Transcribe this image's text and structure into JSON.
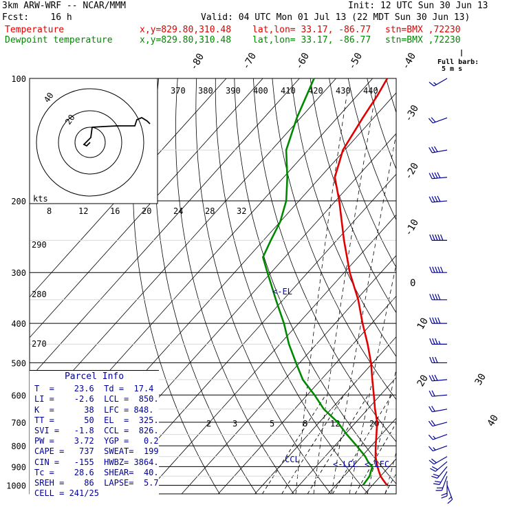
{
  "header": {
    "model": "3km ARW-WRF -- NCAR/MMM",
    "init": "Init: 12 UTC Sun 30 Jun 13",
    "fcst": "Fcst:    16 h",
    "valid": "Valid: 04 UTC Mon 01 Jul 13 (22 MDT Sun 30 Jun 13)",
    "lines": [
      {
        "name": "Temperature",
        "xy": "x,y=829.80,310.48",
        "latlon": "lat,lon= 33.17, -86.77",
        "stn": "stn=BMX ,72230",
        "color": "#e00000"
      },
      {
        "name": "Dewpoint temperature",
        "xy": "x,y=829.80,310.48",
        "latlon": "lat,lon= 33.17, -86.77",
        "stn": "stn=BMX ,72230",
        "color": "#008800"
      }
    ]
  },
  "barb_legend": {
    "title": "Full barb:",
    "value": "5 m s"
  },
  "parcel": {
    "title": "Parcel Info",
    "rows": [
      "T  =    23.6  Td =  17.4",
      "LI =    -2.6  LCL =  850.",
      "K  =      38  LFC = 848.",
      "TT =      50  EL  =  325.",
      "SVI =   -1.8  CCL =  826.",
      "PW =    3.72  YGP =   0.2",
      "CAPE =   737  SWEAT=  199",
      "CIN =   -155  HWBZ= 3864.",
      "Tc =    28.6  SHEAR=  40.",
      "SREH =    86  LAPSE=  5.7",
      "CELL = 241/25"
    ]
  },
  "chart_data": {
    "type": "line",
    "diagram": "skew-T log-p",
    "y_axis": {
      "pressure_levels": [
        100,
        200,
        300,
        400,
        500,
        600,
        700,
        800,
        900,
        1000
      ],
      "scale": "log"
    },
    "isotherm_labels": [
      "-80",
      "-70",
      "-60",
      "-50",
      "-40",
      "-30",
      "-20",
      "-10",
      "0",
      "10",
      "20",
      "30",
      "40"
    ],
    "theta_labels": [
      "370",
      "380",
      "390",
      "400",
      "410",
      "420",
      "430",
      "440"
    ],
    "theta_lower_labels": [
      "290",
      "280",
      "270"
    ],
    "mixing_ratio_labels": [
      "2",
      "3",
      "5",
      "8",
      "12",
      "20"
    ],
    "hodograph": {
      "unit": "kts",
      "ring_labels": [
        "20",
        "40"
      ],
      "speed_ticks": [
        "8",
        "12",
        "16",
        "20",
        "24",
        "28",
        "32"
      ]
    },
    "annotations": [
      "<-EL",
      "CCL",
      "<-LCL",
      "<-LFC"
    ],
    "series": [
      {
        "name": "Temperature",
        "color": "#e00000",
        "points": [
          [
            1000,
            24.0
          ],
          [
            975,
            22.0
          ],
          [
            950,
            20.0
          ],
          [
            925,
            18.4
          ],
          [
            900,
            16.8
          ],
          [
            850,
            13.8
          ],
          [
            800,
            11.2
          ],
          [
            750,
            8.6
          ],
          [
            700,
            5.8
          ],
          [
            650,
            2.0
          ],
          [
            600,
            -1.8
          ],
          [
            550,
            -6.0
          ],
          [
            500,
            -10.5
          ],
          [
            450,
            -16.0
          ],
          [
            400,
            -22.5
          ],
          [
            350,
            -29.5
          ],
          [
            300,
            -38.5
          ],
          [
            250,
            -48.0
          ],
          [
            200,
            -59.0
          ],
          [
            175,
            -66.0
          ],
          [
            150,
            -70.5
          ],
          [
            125,
            -73.0
          ],
          [
            110,
            -74.5
          ],
          [
            100,
            -76.0
          ]
        ]
      },
      {
        "name": "Dewpoint temperature",
        "color": "#008800",
        "points": [
          [
            1000,
            17.4
          ],
          [
            975,
            17.2
          ],
          [
            950,
            17.0
          ],
          [
            925,
            16.2
          ],
          [
            900,
            15.4
          ],
          [
            875,
            13.0
          ],
          [
            850,
            11.0
          ],
          [
            800,
            6.0
          ],
          [
            750,
            0.5
          ],
          [
            700,
            -5.0
          ],
          [
            650,
            -12.0
          ],
          [
            600,
            -18.0
          ],
          [
            550,
            -25.0
          ],
          [
            500,
            -31.0
          ],
          [
            450,
            -37.5
          ],
          [
            400,
            -44.0
          ],
          [
            350,
            -52.0
          ],
          [
            300,
            -61.0
          ],
          [
            275,
            -66.0
          ],
          [
            250,
            -68.0
          ],
          [
            225,
            -70.0
          ],
          [
            200,
            -73.5
          ],
          [
            175,
            -79.0
          ],
          [
            150,
            -86.0
          ],
          [
            125,
            -91.0
          ],
          [
            100,
            -96.0
          ]
        ]
      }
    ],
    "wind_barbs": [
      {
        "p": 1000,
        "dir": 160,
        "spd": 8
      },
      {
        "p": 975,
        "dir": 180,
        "spd": 10
      },
      {
        "p": 950,
        "dir": 200,
        "spd": 12
      },
      {
        "p": 925,
        "dir": 210,
        "spd": 12
      },
      {
        "p": 900,
        "dir": 220,
        "spd": 10
      },
      {
        "p": 875,
        "dir": 230,
        "spd": 10
      },
      {
        "p": 850,
        "dir": 240,
        "spd": 10
      },
      {
        "p": 800,
        "dir": 250,
        "spd": 8
      },
      {
        "p": 750,
        "dir": 250,
        "spd": 8
      },
      {
        "p": 700,
        "dir": 255,
        "spd": 10
      },
      {
        "p": 650,
        "dir": 260,
        "spd": 12
      },
      {
        "p": 600,
        "dir": 265,
        "spd": 12
      },
      {
        "p": 550,
        "dir": 265,
        "spd": 15
      },
      {
        "p": 500,
        "dir": 270,
        "spd": 15
      },
      {
        "p": 450,
        "dir": 270,
        "spd": 18
      },
      {
        "p": 400,
        "dir": 270,
        "spd": 20
      },
      {
        "p": 350,
        "dir": 270,
        "spd": 22
      },
      {
        "p": 300,
        "dir": 270,
        "spd": 25
      },
      {
        "p": 250,
        "dir": 270,
        "spd": 25
      },
      {
        "p": 200,
        "dir": 265,
        "spd": 22
      },
      {
        "p": 175,
        "dir": 265,
        "spd": 20
      },
      {
        "p": 150,
        "dir": 260,
        "spd": 15
      },
      {
        "p": 125,
        "dir": 250,
        "spd": 10
      },
      {
        "p": 100,
        "dir": 240,
        "spd": 8
      }
    ]
  }
}
